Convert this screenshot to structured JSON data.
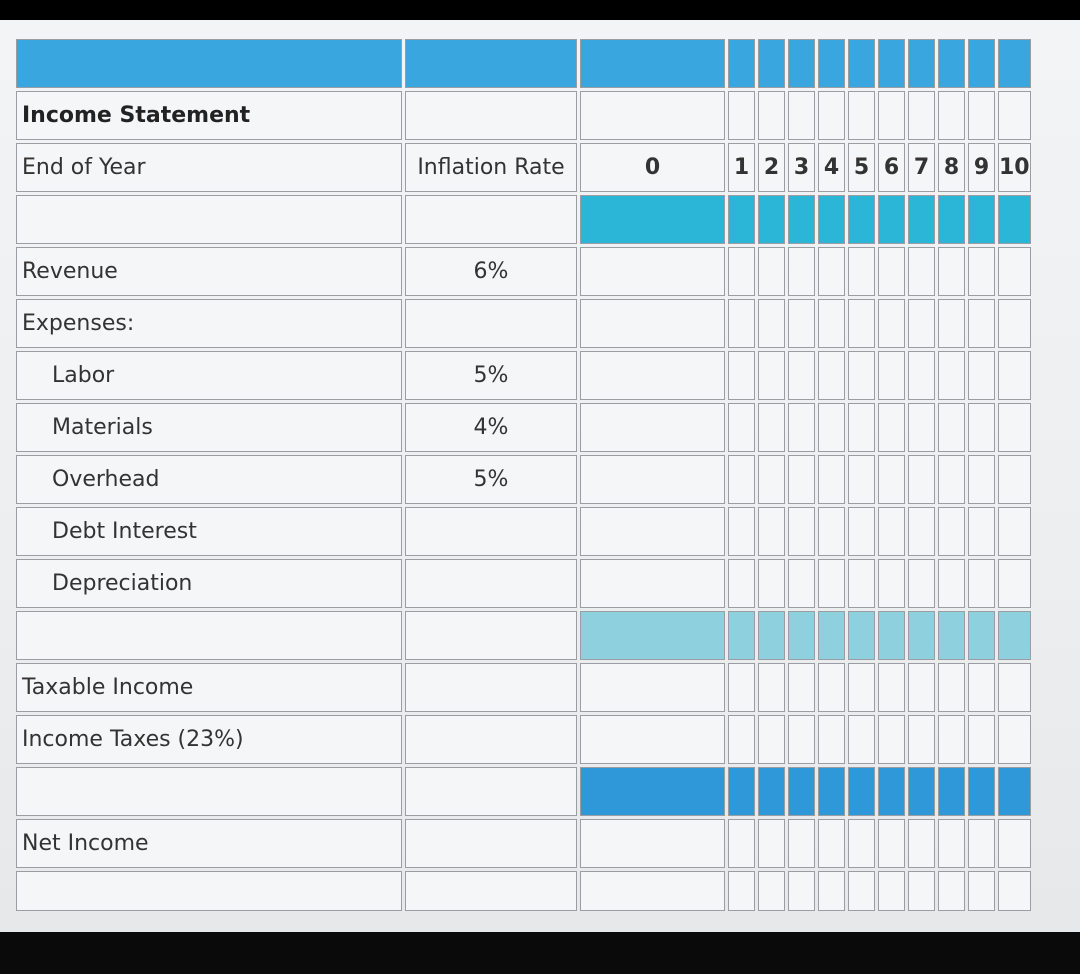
{
  "sheet": {
    "title": "Income Statement",
    "header_row": {
      "label": "End of Year",
      "rate_header": "Inflation Rate",
      "years": [
        "0",
        "1",
        "2",
        "3",
        "4",
        "5",
        "6",
        "7",
        "8",
        "9",
        "10"
      ]
    },
    "rows": {
      "revenue": {
        "label": "Revenue",
        "rate": "6%"
      },
      "expenses": {
        "label": "Expenses:"
      },
      "labor": {
        "label": "Labor",
        "rate": "5%"
      },
      "materials": {
        "label": "Materials",
        "rate": "4%"
      },
      "overhead": {
        "label": "Overhead",
        "rate": "5%"
      },
      "debt_interest": {
        "label": "Debt Interest"
      },
      "depreciation": {
        "label": "Depreciation"
      },
      "taxable_income": {
        "label": "Taxable Income"
      },
      "income_taxes": {
        "label": "Income Taxes (23%)"
      },
      "net_income": {
        "label": "Net Income"
      }
    },
    "colors": {
      "header_blue": "#3aa6df",
      "teal": "#2bb5d6",
      "light_teal": "#8fd0df",
      "strong_blue": "#2f98d8"
    }
  }
}
